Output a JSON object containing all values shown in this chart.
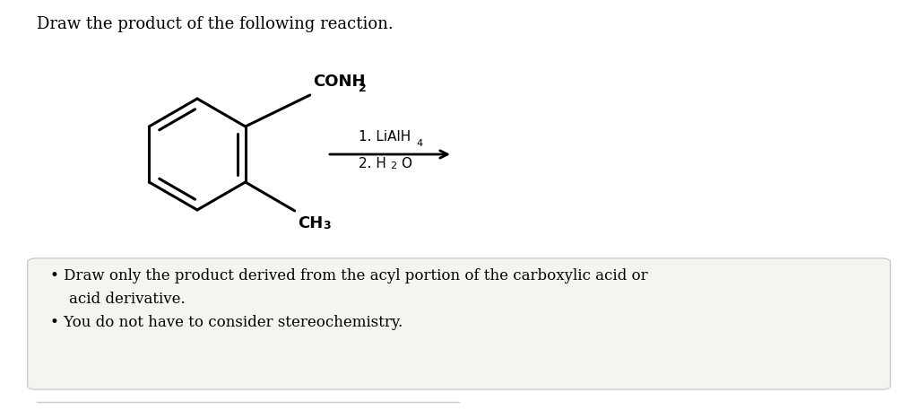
{
  "title": "Draw the product of the following reaction.",
  "title_fontsize": 13,
  "background_color": "#ffffff",
  "box_background": "#f5f5f0",
  "box_edge_color": "#cccccc",
  "bullet_text_1a": "Draw only the product derived from the acyl portion of the carboxylic acid or",
  "bullet_text_1b": "acid derivative.",
  "bullet_text_2": "You do not have to consider stereochemistry.",
  "text_fontsize": 12,
  "arrow_color": "#000000",
  "structure_color": "#000000",
  "lw": 2.2
}
